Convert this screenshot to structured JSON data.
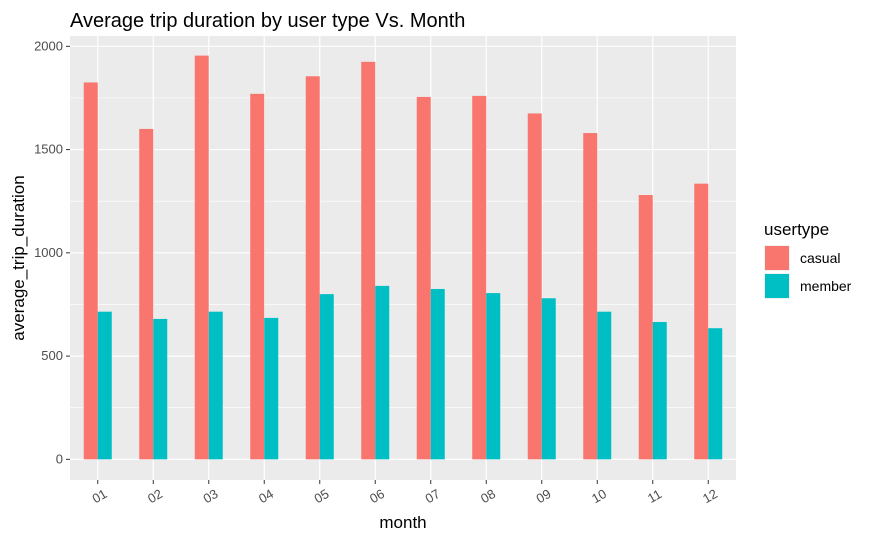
{
  "chart_data": {
    "type": "bar",
    "title": "Average trip duration by user type Vs. Month",
    "xlabel": "month",
    "ylabel": "average_trip_duration",
    "categories": [
      "01",
      "02",
      "03",
      "04",
      "05",
      "06",
      "07",
      "08",
      "09",
      "10",
      "11",
      "12"
    ],
    "series": [
      {
        "name": "casual",
        "color": "#F8766D",
        "values": [
          1825,
          1600,
          1955,
          1770,
          1855,
          1925,
          1755,
          1760,
          1675,
          1580,
          1280,
          1335
        ]
      },
      {
        "name": "member",
        "color": "#00BFC4",
        "values": [
          715,
          680,
          715,
          685,
          800,
          840,
          825,
          805,
          780,
          715,
          665,
          635
        ]
      }
    ],
    "ylim": [
      -100,
      2050
    ],
    "y_ticks": [
      0,
      500,
      1000,
      1500,
      2000
    ],
    "legend_title": "usertype",
    "legend_position": "right",
    "grid": true,
    "panel_background": "#EBEBEB",
    "grid_color": "#FFFFFF"
  }
}
